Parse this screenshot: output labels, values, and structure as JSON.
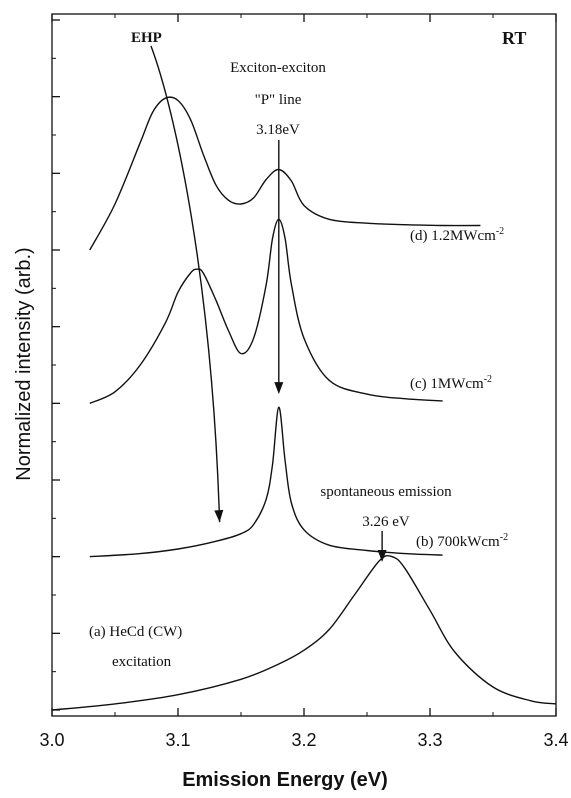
{
  "chart_data": {
    "type": "line",
    "title": "",
    "corner_label": "RT",
    "xlabel": "Emission Energy (eV)",
    "ylabel": "Normalized intensity (arb.)",
    "xlim": [
      3.0,
      3.4
    ],
    "ylim": [
      0,
      9
    ],
    "x_ticks": [
      "3.0",
      "3.1",
      "3.2",
      "3.3",
      "3.4"
    ],
    "y_tick_labels": false,
    "grid": false,
    "series": [
      {
        "name": "(a) HeCd (CW)",
        "label_line2": "excitation",
        "x": [
          3.0,
          3.05,
          3.1,
          3.15,
          3.18,
          3.2,
          3.22,
          3.24,
          3.26,
          3.27,
          3.28,
          3.3,
          3.32,
          3.35,
          3.38,
          3.4
        ],
        "y": [
          0.0,
          0.08,
          0.2,
          0.4,
          0.6,
          0.78,
          1.05,
          1.5,
          1.95,
          2.0,
          1.85,
          1.3,
          0.75,
          0.3,
          0.12,
          0.08
        ]
      },
      {
        "name": "(b) 700kWcm",
        "superscript": "-2",
        "x": [
          3.03,
          3.07,
          3.1,
          3.13,
          3.15,
          3.16,
          3.17,
          3.175,
          3.18,
          3.185,
          3.19,
          3.2,
          3.22,
          3.25,
          3.28,
          3.31
        ],
        "y": [
          2.0,
          2.04,
          2.1,
          2.2,
          2.3,
          2.42,
          2.75,
          3.2,
          3.95,
          3.25,
          2.7,
          2.35,
          2.15,
          2.08,
          2.04,
          2.02
        ]
      },
      {
        "name": "(c) 1MWcm",
        "superscript": "-2",
        "x": [
          3.03,
          3.05,
          3.07,
          3.09,
          3.1,
          3.11,
          3.115,
          3.12,
          3.13,
          3.14,
          3.15,
          3.16,
          3.17,
          3.175,
          3.18,
          3.185,
          3.19,
          3.2,
          3.22,
          3.25,
          3.28,
          3.31
        ],
        "y": [
          4.0,
          4.15,
          4.5,
          5.05,
          5.45,
          5.7,
          5.75,
          5.7,
          5.35,
          4.95,
          4.65,
          4.85,
          5.55,
          6.15,
          6.4,
          6.15,
          5.55,
          4.85,
          4.3,
          4.12,
          4.06,
          4.03
        ]
      },
      {
        "name": "(d) 1.2MWcm",
        "superscript": "-2",
        "x": [
          3.03,
          3.05,
          3.07,
          3.08,
          3.09,
          3.1,
          3.11,
          3.12,
          3.13,
          3.14,
          3.15,
          3.16,
          3.17,
          3.18,
          3.19,
          3.2,
          3.22,
          3.25,
          3.28,
          3.31,
          3.34
        ],
        "y": [
          6.0,
          6.6,
          7.4,
          7.8,
          7.98,
          7.95,
          7.7,
          7.25,
          6.85,
          6.65,
          6.6,
          6.68,
          6.92,
          7.05,
          6.9,
          6.58,
          6.4,
          6.35,
          6.33,
          6.32,
          6.32
        ]
      }
    ],
    "annotations": [
      {
        "id": "ehp",
        "text": "EHP"
      },
      {
        "id": "exciton",
        "lines": [
          "Exciton-exciton",
          "\"P\" line",
          "3.18eV"
        ]
      },
      {
        "id": "spont",
        "lines": [
          "spontaneous emission",
          "3.26 eV"
        ]
      }
    ]
  }
}
